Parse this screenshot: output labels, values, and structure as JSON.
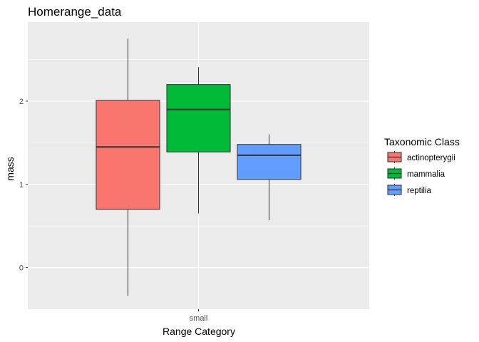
{
  "chart_data": {
    "type": "box",
    "title": "Homerange_data",
    "xlabel": "Range Category",
    "ylabel": "mass",
    "categories": [
      "small"
    ],
    "ylim": [
      -0.5,
      2.95
    ],
    "yticks": [
      0,
      1,
      2
    ],
    "grid": true,
    "legend": {
      "title": "Taxonomic Class",
      "position": "right"
    },
    "colors": {
      "panel": "#ebebeb",
      "grid": "#ffffff",
      "tick_text": "#4d4d4d"
    },
    "series": [
      {
        "name": "actinopterygii",
        "color": "#f8766d",
        "category": "small",
        "whisker_low": -0.34,
        "q1": 0.7,
        "median": 1.45,
        "q3": 2.01,
        "whisker_high": 2.75
      },
      {
        "name": "mammalia",
        "color": "#00ba38",
        "category": "small",
        "whisker_low": 0.65,
        "q1": 1.39,
        "median": 1.9,
        "q3": 2.2,
        "whisker_high": 2.41
      },
      {
        "name": "reptilia",
        "color": "#619cff",
        "category": "small",
        "whisker_low": 0.57,
        "q1": 1.06,
        "median": 1.35,
        "q3": 1.48,
        "whisker_high": 1.6
      }
    ]
  }
}
